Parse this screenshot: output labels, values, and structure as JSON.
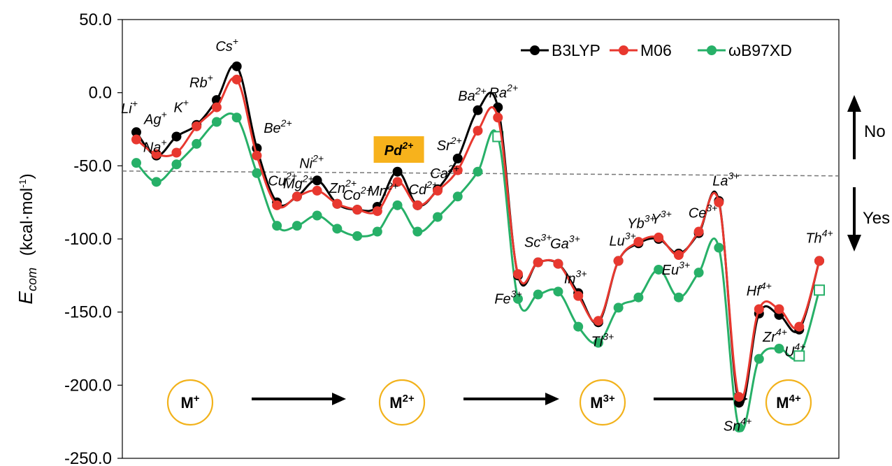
{
  "chart_data": {
    "type": "line",
    "title": "",
    "ylabel_main": "E",
    "ylabel_sub": "com",
    "ylabel_unit": "(kcal·mol",
    "ylabel_unit_sup": "-1",
    "ylabel_unit_end": ")",
    "ylim": [
      -250,
      50
    ],
    "yticks": [
      "50.0",
      "0.0",
      "-50.0",
      "-100.0",
      "-150.0",
      "-200.0",
      "-250.0"
    ],
    "ytick_values": [
      50,
      0,
      -50,
      -100,
      -150,
      -200,
      -250
    ],
    "threshold": -55,
    "grid": false,
    "legend_position": "top-right",
    "categories": [
      "Li⁺",
      "Na⁺",
      "Ag⁺",
      "K⁺",
      "Rb⁺",
      "Cs⁺",
      "Be²⁺",
      "Cu²⁺",
      "Mg²⁺",
      "Ni²⁺",
      "Zn²⁺",
      "Co²⁺",
      "Mn²⁺",
      "Pd²⁺",
      "Cd²⁺",
      "Ca²⁺",
      "Sr²⁺",
      "Ba²⁺",
      "Ra²⁺",
      "Fe³⁺",
      "Sc³⁺",
      "Ga³⁺",
      "In³⁺",
      "Tl³⁺",
      "Lu³⁺",
      "Yb³⁺",
      "Y³⁺",
      "Eu³⁺",
      "Ce³⁺",
      "La³⁺",
      "Sn⁴⁺",
      "Hf⁴⁺",
      "Zr⁴⁺",
      "U⁴⁺",
      "Th⁴⁺"
    ],
    "series": [
      {
        "name": "B3LYP",
        "color": "#000000",
        "values": [
          -27,
          -43,
          -30,
          -22,
          -5,
          18,
          -38,
          -75,
          -71,
          -60,
          -76,
          -80,
          -78,
          -54,
          -77,
          -66,
          -45,
          -12,
          -10,
          -125,
          -116,
          -117,
          -137,
          -157,
          -115,
          -103,
          -100,
          -110,
          -96,
          -74,
          -212,
          -151,
          -152,
          -162,
          -115
        ]
      },
      {
        "name": "M06",
        "color": "#e8382f",
        "values": [
          -32,
          -42,
          -41,
          -23,
          -10,
          9,
          -43,
          -77,
          -71,
          -67,
          -76,
          -80,
          -81,
          -61,
          -77,
          -67,
          -53,
          -26,
          -17,
          -124,
          -116,
          -117,
          -139,
          -156,
          -115,
          -102,
          -99,
          -111,
          -95,
          -75,
          -208,
          -148,
          -148,
          -160,
          -115
        ]
      },
      {
        "name": "ωB97XD",
        "color": "#27b068",
        "values": [
          -48,
          -61,
          -49,
          -35,
          -20,
          -17,
          -55,
          -91,
          -91,
          -84,
          -93,
          -98,
          -95,
          -77,
          -95,
          -85,
          -71,
          -54,
          -30,
          -141,
          -138,
          -136,
          -160,
          -171,
          -147,
          -140,
          -121,
          -140,
          -123,
          -106,
          -229,
          -182,
          -175,
          -180,
          -135
        ]
      }
    ],
    "annotations": {
      "no_label": "No",
      "yes_label": "Yes",
      "highlight_ion": "Pd",
      "highlight_charge": "2+",
      "charge_states": [
        "M",
        "M",
        "M",
        "M"
      ],
      "charge_state_sups": [
        "+",
        "2+",
        "3+",
        "4+"
      ]
    }
  },
  "ion_labels": [
    {
      "s": "Li",
      "c": "+"
    },
    {
      "s": "Na",
      "c": "+"
    },
    {
      "s": "Ag",
      "c": "+"
    },
    {
      "s": "K",
      "c": "+"
    },
    {
      "s": "Rb",
      "c": "+"
    },
    {
      "s": "Cs",
      "c": "+"
    },
    {
      "s": "Be",
      "c": "2+"
    },
    {
      "s": "Cu",
      "c": "2+"
    },
    {
      "s": "Mg",
      "c": "2+"
    },
    {
      "s": "Ni",
      "c": "2+"
    },
    {
      "s": "Zn",
      "c": "2+"
    },
    {
      "s": "Co",
      "c": "2+"
    },
    {
      "s": "Mn",
      "c": "2+"
    },
    {
      "s": "Pd",
      "c": "2+"
    },
    {
      "s": "Cd",
      "c": "2+"
    },
    {
      "s": "Ca",
      "c": "2+"
    },
    {
      "s": "Sr",
      "c": "2+"
    },
    {
      "s": "Ba",
      "c": "2+"
    },
    {
      "s": "Ra",
      "c": "2+"
    },
    {
      "s": "Fe",
      "c": "3+"
    },
    {
      "s": "Sc",
      "c": "3+"
    },
    {
      "s": "Ga",
      "c": "3+"
    },
    {
      "s": "In",
      "c": "3+"
    },
    {
      "s": "Tl",
      "c": "3+"
    },
    {
      "s": "Lu",
      "c": "3+"
    },
    {
      "s": "Yb",
      "c": "3+"
    },
    {
      "s": "Y",
      "c": "3+"
    },
    {
      "s": "Eu",
      "c": "3+"
    },
    {
      "s": "Ce",
      "c": "3+"
    },
    {
      "s": "La",
      "c": "3+"
    },
    {
      "s": "Sn",
      "c": "4+"
    },
    {
      "s": "Hf",
      "c": "4+"
    },
    {
      "s": "Zr",
      "c": "4+"
    },
    {
      "s": "U",
      "c": "4+"
    },
    {
      "s": "Th",
      "c": "4+"
    }
  ]
}
